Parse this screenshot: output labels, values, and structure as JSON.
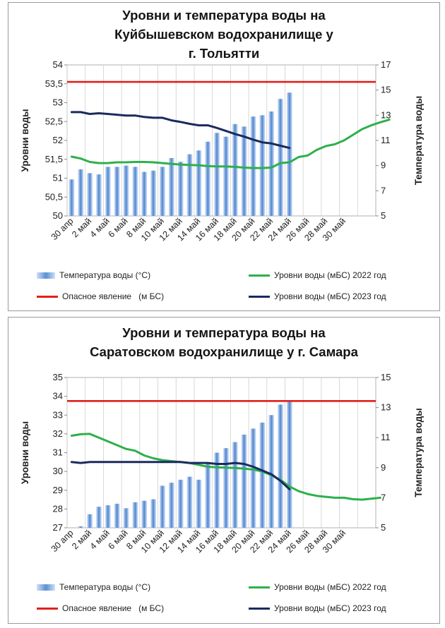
{
  "chart_data": [
    {
      "type": "bar+line",
      "title_lines": [
        "Уровни и температура  воды на",
        "Куйбышевском водохранилище у",
        "г. Тольятти"
      ],
      "ylabel_left": "Уровни воды",
      "ylabel_right": "Температура воды",
      "y_left_range": [
        50,
        54
      ],
      "y_left_ticks": [
        "54",
        "53,5",
        "53",
        "52,5",
        "52",
        "51,5",
        "51",
        "50,5",
        "50"
      ],
      "y_right_range": [
        5,
        17
      ],
      "y_right_ticks": [
        "17",
        "15",
        "13",
        "11",
        "9",
        "7",
        "5"
      ],
      "x_tick_labels": [
        "30 апр",
        "2 май",
        "4 май",
        "6 май",
        "8 май",
        "10 май",
        "12 май",
        "14 май",
        "16 май",
        "18 май",
        "20 май",
        "22 май",
        "24 май",
        "26 май",
        "28 май",
        "30 май"
      ],
      "series": [
        {
          "name": "Температура воды (°С)",
          "kind": "bar",
          "axis": "right",
          "color": "#5b8fd6",
          "values": [
            7.9,
            8.7,
            8.4,
            8.3,
            8.9,
            8.9,
            9.0,
            8.9,
            8.5,
            8.6,
            8.9,
            9.6,
            9.3,
            9.9,
            10.2,
            10.9,
            11.6,
            11.3,
            12.3,
            12.1,
            12.9,
            13.0,
            13.3,
            14.3,
            14.8
          ]
        },
        {
          "name": "Уровни воды (мБС) 2022 год",
          "kind": "line",
          "axis": "left",
          "color": "#2db04b",
          "values": [
            51.57,
            51.52,
            51.43,
            51.4,
            51.4,
            51.42,
            51.42,
            51.43,
            51.43,
            51.42,
            51.4,
            51.38,
            51.36,
            51.35,
            51.34,
            51.32,
            51.31,
            51.31,
            51.3,
            51.28,
            51.27,
            51.27,
            51.28,
            51.4,
            51.42,
            51.56,
            51.6,
            51.75,
            51.85,
            51.9,
            52.0,
            52.15,
            52.3,
            52.4,
            52.48,
            52.55
          ]
        },
        {
          "name": "Опасное явление   (м БС)",
          "kind": "hline",
          "axis": "left",
          "color": "#e0201b",
          "value": 53.55
        },
        {
          "name": "Уровни воды (мБС) 2023 год",
          "kind": "line",
          "axis": "left",
          "color": "#1a2a5e",
          "values": [
            52.75,
            52.75,
            52.7,
            52.72,
            52.7,
            52.68,
            52.66,
            52.66,
            52.62,
            52.6,
            52.6,
            52.53,
            52.49,
            52.44,
            52.4,
            52.4,
            52.33,
            52.25,
            52.17,
            52.1,
            52.02,
            51.95,
            51.92,
            51.86,
            51.8
          ]
        }
      ],
      "legend": [
        {
          "label": "Температура воды (°С)",
          "kind": "bar",
          "color": "#5b8fd6"
        },
        {
          "label": "Уровни воды (мБС) 2022 год",
          "kind": "line",
          "color": "#2db04b"
        },
        {
          "label": "Опасное явление   (м БС)",
          "kind": "line",
          "color": "#e0201b"
        },
        {
          "label": "Уровни воды (мБС) 2023 год",
          "kind": "line",
          "color": "#1a2a5e"
        }
      ]
    },
    {
      "type": "bar+line",
      "title_lines": [
        "Уровни и температура  воды на",
        "Саратовском водохранилище у  г. Самара"
      ],
      "ylabel_left": "Уровни воды",
      "ylabel_right": "Температура воды",
      "y_left_range": [
        27,
        35
      ],
      "y_left_ticks": [
        "35",
        "34",
        "33",
        "32",
        "31",
        "30",
        "29",
        "28",
        "27"
      ],
      "y_right_range": [
        5,
        15
      ],
      "y_right_ticks": [
        "15",
        "13",
        "11",
        "9",
        "7",
        "5"
      ],
      "x_tick_labels": [
        "30 апр",
        "2 май",
        "4 май",
        "6 май",
        "8 май",
        "10 май",
        "12 май",
        "14 май",
        "16 май",
        "18 май",
        "20 май",
        "22 май",
        "24 май",
        "26 май",
        "28 май",
        "30 май"
      ],
      "series": [
        {
          "name": "Температура воды (°С)",
          "kind": "bar",
          "axis": "right",
          "color": "#5b8fd6",
          "values": [
            5.0,
            5.1,
            5.9,
            6.4,
            6.5,
            6.6,
            6.3,
            6.7,
            6.8,
            6.9,
            7.8,
            8.0,
            8.2,
            8.4,
            8.2,
            9.3,
            10.0,
            10.3,
            10.7,
            11.2,
            11.6,
            12.0,
            12.5,
            13.2,
            13.5
          ]
        },
        {
          "name": "Уровни воды (мБС) 2022 год",
          "kind": "line",
          "axis": "left",
          "color": "#2db04b",
          "values": [
            31.9,
            31.98,
            32.0,
            31.8,
            31.6,
            31.4,
            31.2,
            31.1,
            30.85,
            30.7,
            30.6,
            30.55,
            30.5,
            30.45,
            30.35,
            30.25,
            30.22,
            30.2,
            30.18,
            30.15,
            30.1,
            30.0,
            29.8,
            29.55,
            29.2,
            28.95,
            28.8,
            28.7,
            28.65,
            28.6,
            28.6,
            28.52,
            28.5,
            28.55,
            28.6
          ]
        },
        {
          "name": "Опасное явление   (м БС)",
          "kind": "hline",
          "axis": "left",
          "color": "#e0201b",
          "value": 33.75
        },
        {
          "name": "Уровни воды (мБС) 2023 год",
          "kind": "line",
          "axis": "left",
          "color": "#1a2a5e",
          "values": [
            30.5,
            30.45,
            30.5,
            30.5,
            30.5,
            30.5,
            30.5,
            30.5,
            30.5,
            30.5,
            30.5,
            30.5,
            30.5,
            30.45,
            30.45,
            30.45,
            30.4,
            30.4,
            30.45,
            30.4,
            30.25,
            30.05,
            29.85,
            29.5,
            29.05
          ]
        }
      ],
      "legend": [
        {
          "label": "Температура воды (°С)",
          "kind": "bar",
          "color": "#5b8fd6"
        },
        {
          "label": "Уровни воды (мБС) 2022 год",
          "kind": "line",
          "color": "#2db04b"
        },
        {
          "label": "Опасное явление   (м БС)",
          "kind": "line",
          "color": "#e0201b"
        },
        {
          "label": "Уровни воды (мБС) 2023 год",
          "kind": "line",
          "color": "#1a2a5e"
        }
      ]
    }
  ]
}
